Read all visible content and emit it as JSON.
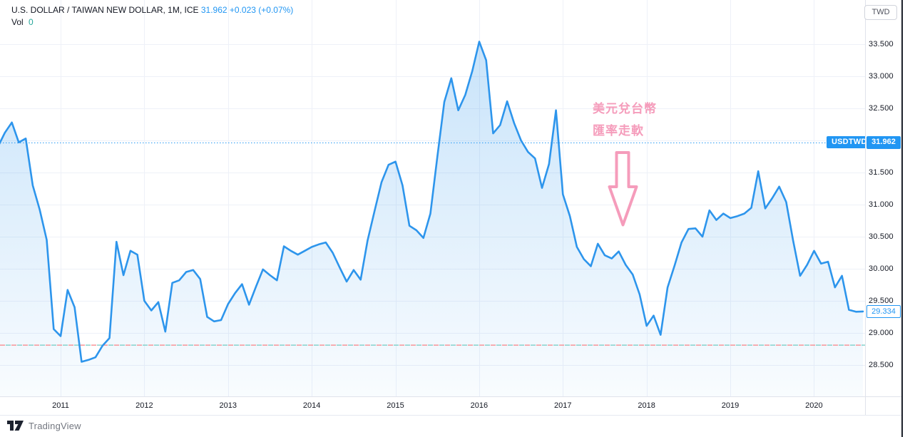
{
  "header": {
    "symbol_title": "U.S. DOLLAR / TAIWAN NEW DOLLAR, 1M, ICE",
    "price": "31.962",
    "change": "+0.023 (+0.07%)",
    "vol_label": "Vol",
    "vol_value": "0"
  },
  "currency_button": "TWD",
  "annotation": {
    "line1": "美元兌台幣",
    "line2": "匯率走軟"
  },
  "price_label": {
    "symbol": "USDTWD",
    "current": "31.962",
    "last": "29.334"
  },
  "watermark": "TradingView",
  "colors": {
    "accent_blue": "#2196f3",
    "line_blue": "#2d95ec",
    "teal": "#26a69a",
    "pink": "#f59cbb",
    "grid": "#eef1f8",
    "axis_text": "#131722",
    "separator": "#e0e3eb",
    "red_dash": "#f78084",
    "teal_dash": "#70cac2"
  },
  "chart_data": {
    "type": "area",
    "title": "USD/TWD, 1 month, ICE",
    "legend_entries": [
      "USDTWD"
    ],
    "grid": true,
    "legend_position": "top-left",
    "x_axis": {
      "ticks": [
        "2011",
        "2012",
        "2013",
        "2014",
        "2015",
        "2016",
        "2017",
        "2018",
        "2019",
        "2020"
      ]
    },
    "y_axis": {
      "ticks": [
        "33.500",
        "33.000",
        "32.500",
        "32.000",
        "31.500",
        "31.000",
        "30.500",
        "30.000",
        "29.500",
        "29.000",
        "28.500"
      ],
      "visible_range": [
        28.0,
        33.85
      ]
    },
    "current_price": 31.962,
    "last_close": 29.334,
    "dashed_level": 28.81,
    "series": {
      "name": "USDTWD monthly close",
      "start": "2010-04",
      "interval": "1M",
      "values": [
        31.9,
        32.12,
        32.28,
        31.97,
        32.03,
        31.3,
        30.92,
        30.45,
        29.06,
        28.95,
        29.67,
        29.4,
        28.55,
        28.58,
        28.62,
        28.8,
        28.92,
        30.42,
        29.9,
        30.28,
        30.22,
        29.5,
        29.35,
        29.48,
        29.02,
        29.78,
        29.82,
        29.95,
        29.98,
        29.84,
        29.25,
        29.18,
        29.2,
        29.45,
        29.62,
        29.76,
        29.44,
        29.72,
        29.99,
        29.9,
        29.82,
        30.35,
        30.28,
        30.22,
        30.28,
        30.34,
        30.38,
        30.41,
        30.25,
        30.02,
        29.8,
        29.98,
        29.83,
        30.44,
        30.9,
        31.35,
        31.62,
        31.67,
        31.3,
        30.67,
        30.6,
        30.48,
        30.86,
        31.75,
        32.6,
        32.97,
        32.47,
        32.71,
        33.08,
        33.54,
        33.25,
        32.11,
        32.24,
        32.61,
        32.27,
        32.0,
        31.82,
        31.72,
        31.26,
        31.63,
        32.47,
        31.16,
        30.82,
        30.34,
        30.15,
        30.04,
        30.39,
        30.21,
        30.16,
        30.27,
        30.06,
        29.91,
        29.6,
        29.11,
        29.27,
        28.97,
        29.71,
        30.05,
        30.41,
        30.62,
        30.63,
        30.5,
        30.91,
        30.76,
        30.86,
        30.79,
        30.82,
        30.86,
        30.95,
        31.52,
        30.94,
        31.1,
        31.28,
        31.04,
        30.44,
        29.89,
        30.06,
        30.28,
        30.08,
        30.11,
        29.71,
        29.89,
        29.36,
        29.33,
        29.334
      ]
    }
  }
}
